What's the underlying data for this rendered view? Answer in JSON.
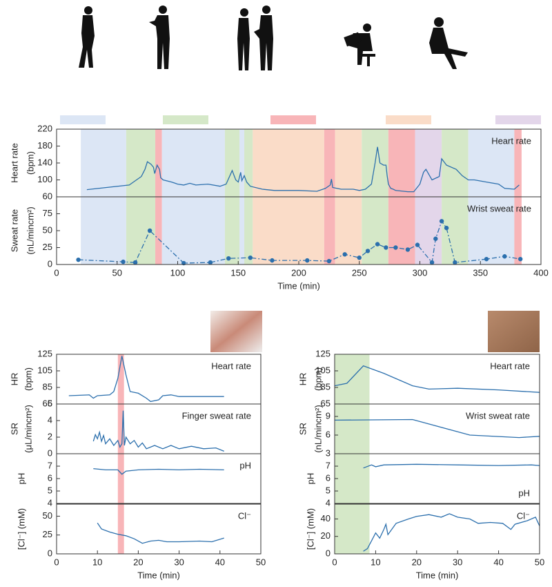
{
  "chart_data": [
    {
      "type": "line",
      "xlabel": "Time (min)",
      "xlim": [
        0,
        400
      ],
      "xticks": [
        0,
        50,
        100,
        150,
        200,
        250,
        300,
        350,
        400
      ],
      "activity_colors": [
        "#dce6f5",
        "#d5e8c8",
        "#f8b5b8",
        "#fadcc8",
        "#e3d6ea"
      ],
      "spans": [
        {
          "start": 20,
          "end": 57.5,
          "color": "#dce6f5"
        },
        {
          "start": 57.5,
          "end": 81.5,
          "color": "#d5e8c8"
        },
        {
          "start": 81.5,
          "end": 87,
          "color": "#f8b5b8"
        },
        {
          "start": 87,
          "end": 139,
          "color": "#dce6f5"
        },
        {
          "start": 139,
          "end": 151,
          "color": "#d5e8c8"
        },
        {
          "start": 151,
          "end": 155,
          "color": "#dce6f5"
        },
        {
          "start": 155,
          "end": 162,
          "color": "#d5e8c8"
        },
        {
          "start": 162,
          "end": 221,
          "color": "#fadcc8"
        },
        {
          "start": 221,
          "end": 230,
          "color": "#f8b5b8"
        },
        {
          "start": 230,
          "end": 252,
          "color": "#fadcc8"
        },
        {
          "start": 252,
          "end": 274,
          "color": "#d5e8c8"
        },
        {
          "start": 274,
          "end": 296,
          "color": "#f8b5b8"
        },
        {
          "start": 296,
          "end": 318,
          "color": "#e3d6ea"
        },
        {
          "start": 318,
          "end": 340,
          "color": "#d5e8c8"
        },
        {
          "start": 340,
          "end": 378,
          "color": "#dce6f5"
        },
        {
          "start": 378,
          "end": 384,
          "color": "#f8b5b8"
        }
      ],
      "panels": [
        {
          "ylabel": [
            "Heart rate",
            "(bpm)"
          ],
          "annotation": "Heart rate",
          "ylim": [
            60,
            220
          ],
          "yticks": [
            60,
            100,
            140,
            180,
            220
          ],
          "series": [
            {
              "color": "#2b6fad",
              "style": "solid",
              "x": [
                25,
                60,
                70,
                73,
                75,
                78,
                80,
                81,
                83,
                85,
                86,
                88,
                95,
                100,
                105,
                110,
                115,
                125,
                135,
                140,
                145,
                148,
                150,
                152,
                153,
                155,
                157,
                160,
                170,
                180,
                200,
                215,
                222,
                226,
                227,
                228,
                235,
                245,
                250,
                255,
                260,
                263,
                265,
                267,
                270,
                272,
                273,
                274,
                275,
                276,
                278,
                280,
                290,
                295,
                300,
                303,
                305,
                310,
                316,
                318,
                322,
                330,
                335,
                340,
                345,
                355,
                365,
                370,
                378,
                382
              ],
              "values": [
                77,
                88,
                108,
                125,
                143,
                137,
                130,
                115,
                135,
                125,
                105,
                100,
                95,
                90,
                88,
                92,
                88,
                90,
                85,
                90,
                122,
                100,
                95,
                118,
                98,
                110,
                95,
                85,
                78,
                75,
                75,
                73,
                80,
                88,
                102,
                82,
                78,
                78,
                75,
                78,
                90,
                140,
                178,
                140,
                135,
                135,
                110,
                90,
                85,
                80,
                78,
                75,
                72,
                72,
                90,
                118,
                125,
                100,
                108,
                150,
                135,
                125,
                110,
                100,
                100,
                95,
                90,
                80,
                78,
                88
              ]
            }
          ]
        },
        {
          "ylabel": [
            "Sweat rate",
            "(nL/mincm²)"
          ],
          "annotation": "Wrist sweat rate",
          "ylim": [
            0,
            100
          ],
          "yticks": [
            0,
            25,
            50,
            75
          ],
          "series": [
            {
              "color": "#2b6fad",
              "style": "dash-dot",
              "markers": true,
              "x": [
                18,
                55,
                65,
                77,
                105,
                127,
                142,
                160,
                178,
                207,
                225,
                238,
                250,
                257,
                265,
                272,
                280,
                290,
                298,
                310,
                313,
                318,
                322,
                329,
                355,
                370,
                383
              ],
              "values": [
                7,
                4,
                3,
                50,
                2,
                3,
                9,
                10,
                6,
                6,
                5,
                15,
                10,
                20,
                30,
                25,
                25,
                22,
                29,
                3,
                38,
                64,
                54,
                3,
                8,
                12,
                8
              ]
            }
          ]
        }
      ]
    },
    {
      "type": "line",
      "xlabel": "Time (min)",
      "xlim": [
        0,
        50
      ],
      "xticks": [
        0,
        10,
        20,
        30,
        40,
        50
      ],
      "spans": [
        {
          "start": 15,
          "end": 16.5,
          "color": "#f8b5b8"
        }
      ],
      "panels": [
        {
          "ylabel": [
            "HR",
            "(bpm)"
          ],
          "annotation": "Heart rate",
          "ylim": [
            65,
            125
          ],
          "yticks": [
            65,
            85,
            105,
            125
          ],
          "series": [
            {
              "color": "#2b6fad",
              "style": "solid",
              "x": [
                3,
                8,
                9,
                10,
                13,
                14,
                15,
                16,
                17,
                18,
                20,
                22,
                23,
                25,
                26,
                28,
                30,
                35,
                41
              ],
              "values": [
                75,
                76,
                72,
                75,
                76,
                80,
                96,
                123,
                100,
                80,
                78,
                72,
                68,
                70,
                75,
                76,
                74,
                74,
                74
              ]
            }
          ]
        },
        {
          "ylabel": [
            "SR",
            "(μL/mincm²)"
          ],
          "annotation": "Finger sweat rate",
          "ylim": [
            0,
            6
          ],
          "yticks": [
            0,
            2,
            4,
            6
          ],
          "series": [
            {
              "color": "#2b6fad",
              "style": "solid",
              "x": [
                9,
                9.5,
                10,
                10.5,
                11,
                11.5,
                12,
                13,
                14,
                15,
                15.5,
                16,
                16.3,
                16.6,
                17,
                18,
                19,
                20,
                21,
                22,
                24,
                26,
                28,
                30,
                33,
                36,
                39,
                41
              ],
              "values": [
                1.5,
                2.3,
                1.8,
                2.6,
                1.5,
                2.2,
                1.2,
                1.8,
                1,
                1.6,
                0.8,
                1.2,
                5.2,
                1,
                2,
                1.2,
                1.6,
                0.8,
                1.3,
                0.6,
                1,
                0.6,
                1,
                0.6,
                0.9,
                0.6,
                0.7,
                0.3
              ]
            }
          ]
        },
        {
          "ylabel": [
            "pH"
          ],
          "annotation": "pH",
          "ylim": [
            4,
            8
          ],
          "yticks": [
            4,
            5,
            6,
            7
          ],
          "series": [
            {
              "color": "#2b6fad",
              "style": "solid",
              "x": [
                9,
                12,
                15,
                16,
                17,
                20,
                25,
                30,
                35,
                41
              ],
              "values": [
                6.8,
                6.7,
                6.7,
                6.35,
                6.6,
                6.7,
                6.75,
                6.7,
                6.75,
                6.7
              ]
            }
          ]
        },
        {
          "ylabel": [
            "[Cl⁻] (mM)"
          ],
          "annotation": "Cl⁻",
          "ylim": [
            0,
            66
          ],
          "yticks": [
            0,
            25,
            50
          ],
          "series": [
            {
              "color": "#2b6fad",
              "style": "solid",
              "x": [
                10,
                11,
                13,
                15,
                17,
                19,
                21,
                23,
                25,
                27,
                30,
                35,
                38,
                41
              ],
              "values": [
                41,
                33,
                29,
                26,
                24,
                20,
                14,
                17,
                18,
                16,
                16,
                17,
                16,
                21
              ]
            }
          ]
        }
      ]
    },
    {
      "type": "line",
      "xlabel": "Time (min)",
      "xlim": [
        0,
        50
      ],
      "xticks": [
        0,
        10,
        20,
        30,
        40,
        50
      ],
      "spans": [
        {
          "start": 0,
          "end": 8.5,
          "color": "#d5e8c8"
        }
      ],
      "panels": [
        {
          "ylabel": [
            "HR",
            "(bpm)"
          ],
          "annotation": "Heart rate",
          "ylim": [
            65,
            125
          ],
          "yticks": [
            65,
            85,
            105,
            125
          ],
          "series": [
            {
              "color": "#2b6fad",
              "style": "solid",
              "x": [
                0,
                3,
                7,
                12,
                19,
                23,
                30,
                40,
                50
              ],
              "values": [
                87,
                90,
                111,
                102,
                87,
                83,
                84,
                82,
                79
              ]
            }
          ]
        },
        {
          "ylabel": [
            "SR",
            "(nL/mincm²)"
          ],
          "annotation": "Wrist sweat rate",
          "ylim": [
            3,
            11
          ],
          "yticks": [
            3,
            6,
            9
          ],
          "series": [
            {
              "color": "#2b6fad",
              "style": "solid",
              "x": [
                0,
                19,
                33,
                45,
                50
              ],
              "values": [
                8.4,
                8.5,
                6,
                5.6,
                5.8
              ]
            }
          ]
        },
        {
          "ylabel": [
            "pH"
          ],
          "annotation": "pH",
          "annotation_pos": "bottom",
          "ylim": [
            4,
            8
          ],
          "yticks": [
            4,
            5,
            6,
            7
          ],
          "series": [
            {
              "color": "#2b6fad",
              "style": "solid",
              "x": [
                7,
                9,
                10,
                12,
                20,
                30,
                40,
                48,
                50
              ],
              "values": [
                6.85,
                7.1,
                6.95,
                7.1,
                7.15,
                7.1,
                7.05,
                7.1,
                7.05
              ]
            }
          ]
        },
        {
          "ylabel": [
            "[Cl⁻] (mM)"
          ],
          "annotation": "Cl⁻",
          "ylim": [
            0,
            57
          ],
          "yticks": [
            0,
            20,
            40
          ],
          "series": [
            {
              "color": "#2b6fad",
              "style": "solid",
              "x": [
                7,
                8,
                9,
                10,
                11,
                12,
                12.5,
                13,
                15,
                18,
                20,
                23,
                26,
                28,
                30,
                33,
                35,
                38,
                41,
                43,
                44,
                47,
                49,
                50
              ],
              "values": [
                3,
                6,
                15,
                24,
                18,
                28,
                34,
                22,
                35,
                40,
                43,
                45,
                42,
                46,
                42,
                40,
                35,
                36,
                35,
                28,
                34,
                38,
                42,
                32
              ]
            }
          ]
        }
      ]
    }
  ]
}
